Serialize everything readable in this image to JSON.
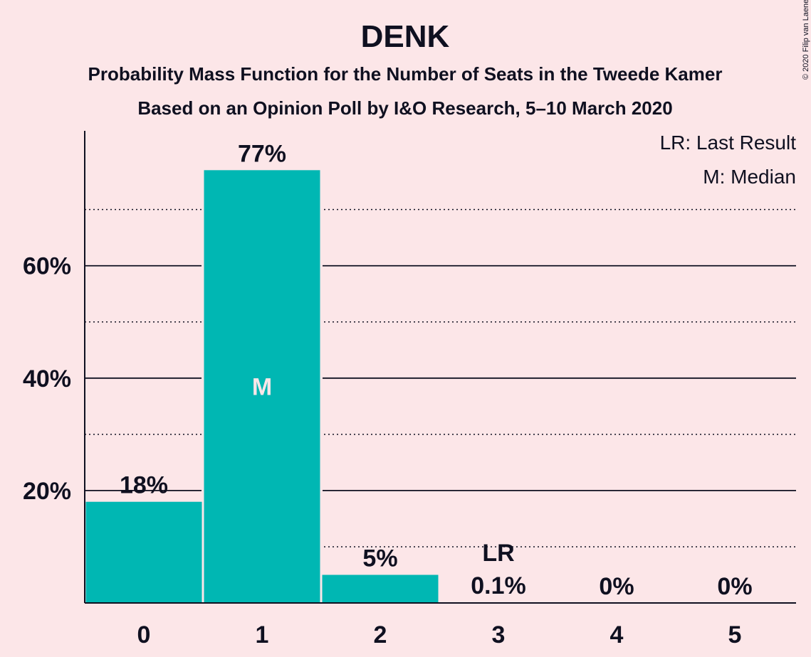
{
  "copyright": "© 2020 Filip van Laenen",
  "colors": {
    "background": "#FCE6E8",
    "bar": "#00B7B3",
    "text": "#0F1020",
    "median_label": "#FCE6E8"
  },
  "chart_data": {
    "type": "bar",
    "title": "DENK",
    "subtitle": "Probability Mass Function for the Number of Seats in the Tweede Kamer",
    "subtitle2": "Based on an Opinion Poll by I&O Research, 5–10 March 2020",
    "categories": [
      "0",
      "1",
      "2",
      "3",
      "4",
      "5"
    ],
    "values": [
      18,
      77,
      5,
      0.1,
      0,
      0
    ],
    "value_labels": [
      "18%",
      "77%",
      "5%",
      "0.1%",
      "0%",
      "0%"
    ],
    "ylim": [
      0,
      84
    ],
    "y_ticks": [
      {
        "value": 20,
        "label": "20%"
      },
      {
        "value": 40,
        "label": "40%"
      },
      {
        "value": 60,
        "label": "60%"
      }
    ],
    "y_minor_gridlines": [
      10,
      30,
      50,
      70
    ],
    "median_index": 1,
    "median_marker": "M",
    "last_result_index": 3,
    "last_result_marker": "LR",
    "legend": [
      "LR: Last Result",
      "M: Median"
    ],
    "legend_position": "top-right",
    "grid": true
  }
}
